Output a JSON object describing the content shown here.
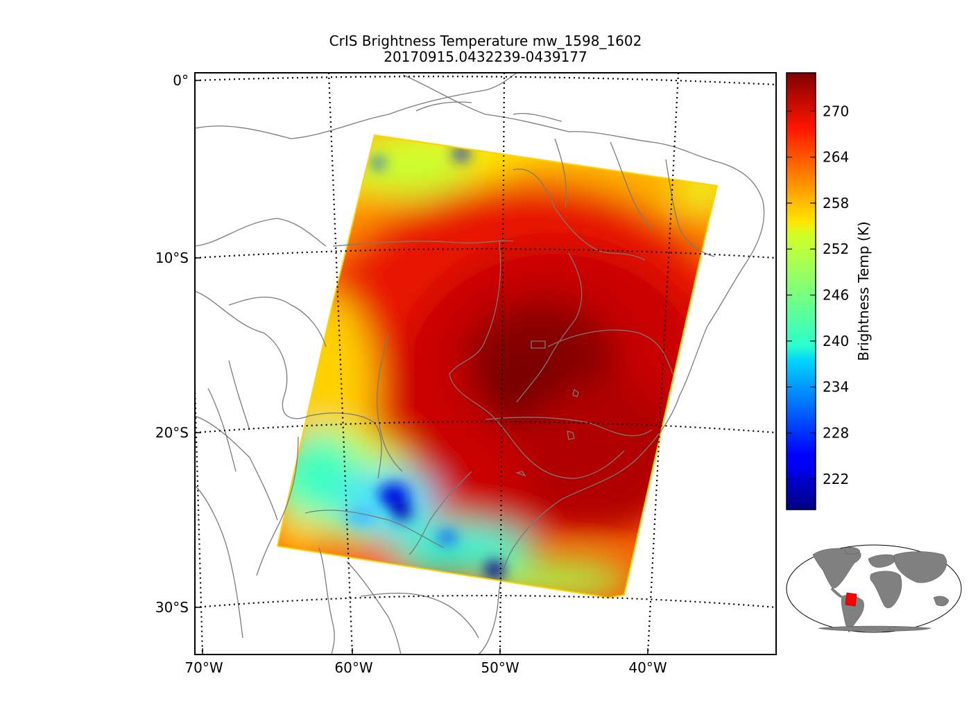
{
  "title": {
    "line1": "CrIS Brightness Temperature mw_1598_1602",
    "line2": "20170915.0432239-0439177"
  },
  "map": {
    "lat_labels": [
      "0°",
      "10°S",
      "20°S",
      "30°S"
    ],
    "lon_labels": [
      "70°W",
      "60°W",
      "50°W",
      "40°W"
    ],
    "lat_values": [
      0,
      -10,
      -20,
      -30
    ],
    "lon_values": [
      -70,
      -60,
      -50,
      -40
    ],
    "extent": {
      "lon": [
        -70,
        -32
      ],
      "lat": [
        -33,
        0.5
      ]
    },
    "colormap": "jet",
    "value_range_K": [
      218,
      275
    ],
    "field_description": "warm core ~274 K over central Brazil; cold convective pockets ~225 K near 25°S 56°W and 27°S 50°W"
  },
  "colorbar": {
    "label": "Brightness Temp (K)",
    "ticks": [
      "270",
      "264",
      "258",
      "252",
      "246",
      "240",
      "234",
      "228",
      "222"
    ],
    "tick_values": [
      270,
      264,
      258,
      252,
      246,
      240,
      234,
      228,
      222
    ],
    "min": 218,
    "max": 275
  },
  "inset": {
    "description": "global locator map",
    "land_color": "#808080",
    "highlight_color": "#ff0000"
  }
}
